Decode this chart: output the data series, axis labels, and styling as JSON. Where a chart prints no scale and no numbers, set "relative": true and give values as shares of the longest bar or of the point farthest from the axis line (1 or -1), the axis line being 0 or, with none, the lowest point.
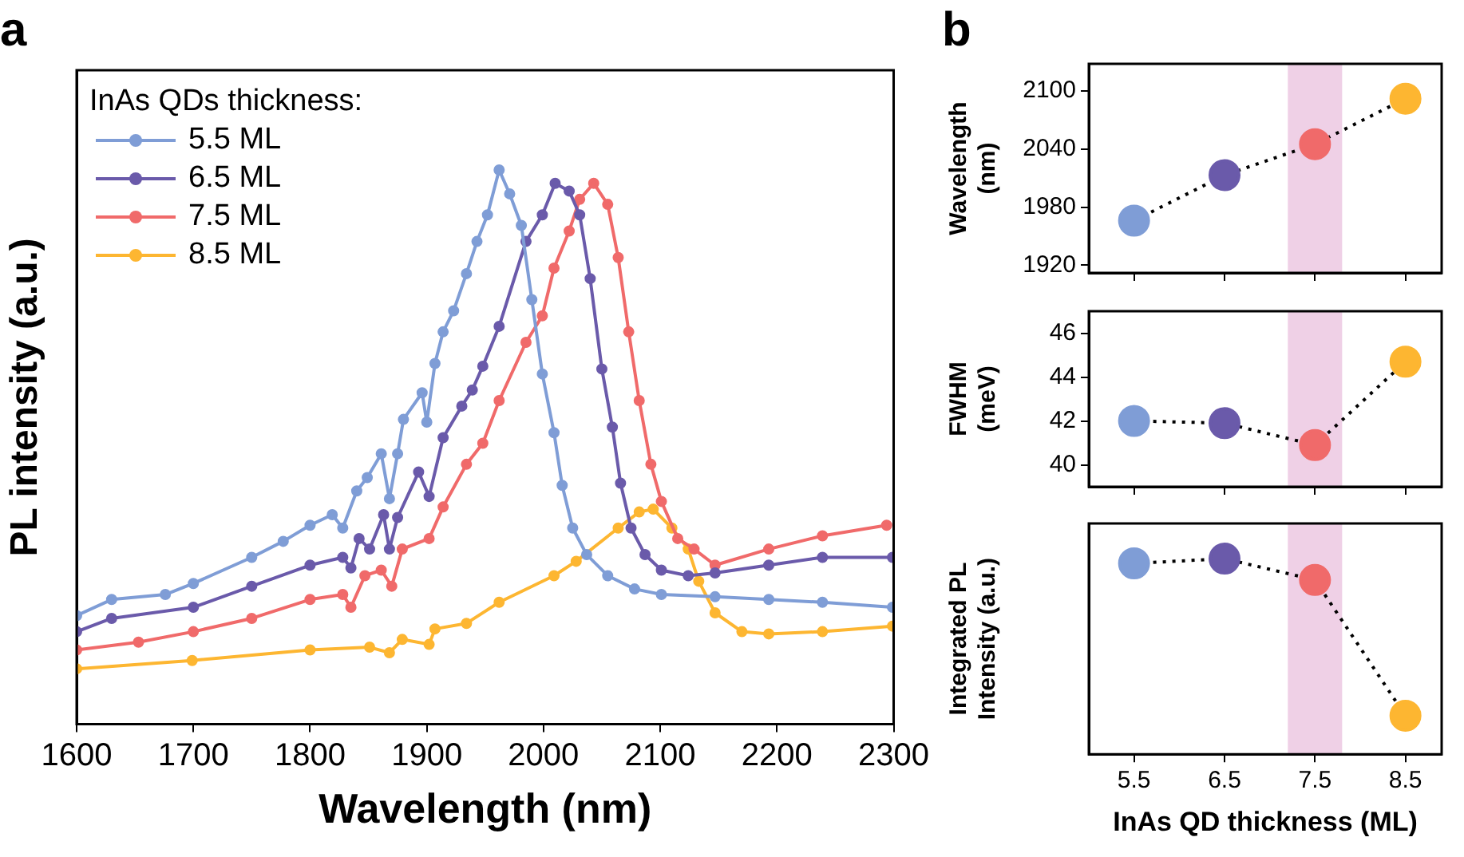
{
  "chart_data": [
    {
      "type": "line",
      "title": "a",
      "xlabel": "Wavelength (nm)",
      "ylabel": "PL intensity (a.u.)",
      "legend_title": "InAs QDs thickness:",
      "legend": "top left",
      "relative": true,
      "tick_labels": "x",
      "marker": "circle",
      "line_style": "solid",
      "grid": false,
      "xlim": [
        1600,
        2300
      ],
      "xticks": [
        1600,
        1700,
        1800,
        1900,
        2000,
        2100,
        2200,
        2300
      ],
      "series": [
        {
          "name": "5.5 ML",
          "color": "#7f9dd6",
          "x": [
            1600,
            1630,
            1676,
            1700,
            1750,
            1777,
            1800,
            1819,
            1828,
            1840,
            1849,
            1861,
            1868,
            1875,
            1880,
            1896,
            1900,
            1907,
            1914,
            1923,
            1934,
            1943,
            1952,
            1962,
            1971,
            1981,
            1990,
            1999,
            2009,
            2016,
            2025,
            2037,
            2055,
            2078,
            2101,
            2147,
            2193,
            2239,
            2299
          ],
          "values": [
            0.196,
            0.225,
            0.234,
            0.254,
            0.301,
            0.33,
            0.359,
            0.378,
            0.354,
            0.421,
            0.445,
            0.488,
            0.407,
            0.488,
            0.55,
            0.598,
            0.545,
            0.651,
            0.708,
            0.746,
            0.813,
            0.871,
            0.919,
            1,
            0.957,
            0.9,
            0.766,
            0.632,
            0.526,
            0.431,
            0.354,
            0.306,
            0.268,
            0.244,
            0.234,
            0.23,
            0.225,
            0.22,
            0.211
          ]
        },
        {
          "name": "6.5 ML",
          "color": "#6a5aaa",
          "x": [
            1600,
            1630,
            1700,
            1750,
            1800,
            1828,
            1835,
            1842,
            1851,
            1863,
            1868,
            1875,
            1893,
            1902,
            1914,
            1930,
            1939,
            1948,
            1962,
            1985,
            1999,
            2010,
            2022,
            2031,
            2040,
            2050,
            2059,
            2066,
            2075,
            2087,
            2101,
            2124,
            2147,
            2193,
            2239,
            2299
          ],
          "values": [
            0.167,
            0.191,
            0.211,
            0.249,
            0.287,
            0.301,
            0.282,
            0.335,
            0.316,
            0.378,
            0.316,
            0.373,
            0.455,
            0.411,
            0.517,
            0.574,
            0.603,
            0.646,
            0.718,
            0.871,
            0.919,
            0.976,
            0.962,
            0.919,
            0.804,
            0.641,
            0.536,
            0.435,
            0.354,
            0.306,
            0.278,
            0.268,
            0.273,
            0.287,
            0.301,
            0.301
          ]
        },
        {
          "name": "7.5 ML",
          "color": "#f06a6a",
          "x": [
            1600,
            1653,
            1700,
            1750,
            1800,
            1828,
            1835,
            1847,
            1861,
            1870,
            1879,
            1902,
            1914,
            1934,
            1948,
            1962,
            1985,
            1999,
            2009,
            2022,
            2031,
            2043,
            2055,
            2064,
            2073,
            2082,
            2092,
            2101,
            2115,
            2129,
            2147,
            2193,
            2239,
            2294
          ],
          "values": [
            0.134,
            0.148,
            0.167,
            0.191,
            0.225,
            0.234,
            0.211,
            0.268,
            0.278,
            0.249,
            0.316,
            0.335,
            0.392,
            0.469,
            0.507,
            0.584,
            0.689,
            0.737,
            0.823,
            0.89,
            0.947,
            0.976,
            0.938,
            0.842,
            0.708,
            0.584,
            0.469,
            0.402,
            0.335,
            0.316,
            0.287,
            0.316,
            0.34,
            0.359
          ]
        },
        {
          "name": "8.5 ML",
          "color": "#fdb631",
          "x": [
            1600,
            1699,
            1800,
            1851,
            1868,
            1879,
            1902,
            1907,
            1934,
            1962,
            2009,
            2028,
            2064,
            2082,
            2094,
            2110,
            2124,
            2133,
            2147,
            2170,
            2193,
            2239,
            2299
          ],
          "values": [
            0.1,
            0.115,
            0.134,
            0.139,
            0.129,
            0.153,
            0.144,
            0.172,
            0.182,
            0.22,
            0.268,
            0.294,
            0.354,
            0.383,
            0.388,
            0.354,
            0.316,
            0.258,
            0.201,
            0.167,
            0.163,
            0.167,
            0.177
          ]
        }
      ]
    },
    {
      "type": "line",
      "title": "b",
      "ylabel": "Wavelength (nm)",
      "tick_labels": "y",
      "marker": "circle",
      "line_style": "dotted",
      "grid": false,
      "x": [
        5.5,
        6.5,
        7.5,
        8.5
      ],
      "xlim": [
        5,
        8.9
      ],
      "xticks": [
        5.5,
        6.5,
        7.5,
        8.5
      ],
      "ylim": [
        1912,
        2128
      ],
      "yticks": [
        1920,
        1980,
        2040,
        2100
      ],
      "bands": [
        {
          "axis": "x",
          "from": 7.2,
          "to": 7.8,
          "color": "#efd0e6"
        }
      ],
      "series": [
        {
          "color": "#000000",
          "colors": [
            "#7f9dd6",
            "#6a5aaa",
            "#f06a6a",
            "#fdb631"
          ],
          "values": [
            1966,
            2013,
            2045,
            2092
          ]
        }
      ]
    },
    {
      "type": "line",
      "ylabel": "FWHM (meV)",
      "tick_labels": "y",
      "marker": "circle",
      "line_style": "dotted",
      "grid": false,
      "x": [
        5.5,
        6.5,
        7.5,
        8.5
      ],
      "xlim": [
        5,
        8.9
      ],
      "xticks": [
        5.5,
        6.5,
        7.5,
        8.5
      ],
      "ylim": [
        39,
        47
      ],
      "yticks": [
        40,
        42,
        44,
        46
      ],
      "bands": [
        {
          "axis": "x",
          "from": 7.2,
          "to": 7.8,
          "color": "#efd0e6"
        }
      ],
      "series": [
        {
          "color": "#000000",
          "colors": [
            "#7f9dd6",
            "#6a5aaa",
            "#f06a6a",
            "#fdb631"
          ],
          "values": [
            42.0,
            41.9,
            40.9,
            44.7
          ]
        }
      ]
    },
    {
      "type": "line",
      "xlabel": "InAs QD thickness (ML)",
      "ylabel": "Integrated PL Intensity (a.u.)",
      "relative": true,
      "tick_labels": "x",
      "marker": "circle",
      "line_style": "dotted",
      "grid": false,
      "x": [
        5.5,
        6.5,
        7.5,
        8.5
      ],
      "xlim": [
        5,
        8.9
      ],
      "xticks": [
        5.5,
        6.5,
        7.5,
        8.5
      ],
      "bands": [
        {
          "axis": "x",
          "from": 7.2,
          "to": 7.8,
          "color": "#efd0e6"
        }
      ],
      "series": [
        {
          "color": "#000000",
          "colors": [
            "#7f9dd6",
            "#6a5aaa",
            "#f06a6a",
            "#fdb631"
          ],
          "values": [
            0.976,
            1,
            0.891,
            0.197
          ]
        }
      ]
    }
  ]
}
